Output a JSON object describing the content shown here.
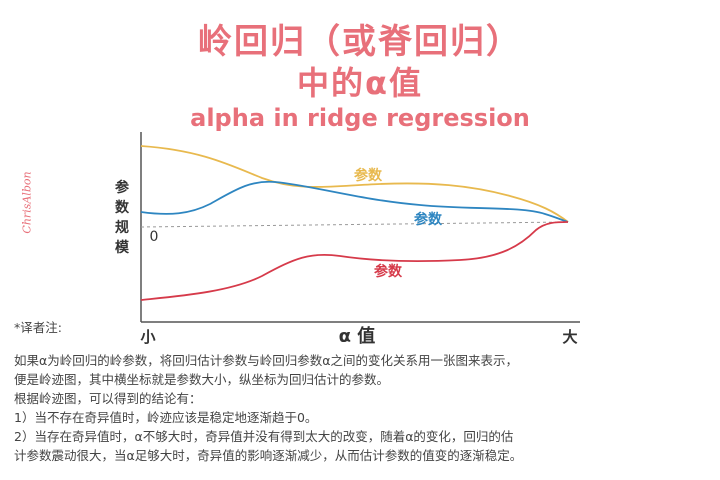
{
  "title": {
    "line1": "岭回归（或脊回归）",
    "line2": "中的α值",
    "line3": "alpha in ridge regression"
  },
  "signature": "ChrisAlbon",
  "diagram": {
    "y_axis_label_chars": [
      "参",
      "数",
      "规",
      "模"
    ],
    "zero_label": "0",
    "x_axis_left": "小",
    "x_axis_center": "α 值",
    "x_axis_right": "大",
    "curves": [
      {
        "label": "参数",
        "color": "#e8b94e"
      },
      {
        "label": "参数",
        "color": "#2e86c1"
      },
      {
        "label": "参数",
        "color": "#d63a4a"
      }
    ]
  },
  "notes": {
    "heading": "*译者注:",
    "lines": [
      "如果α为岭回归的岭参数，将回归估计参数与岭回归参数α之间的变化关系用一张图来表示，",
      "便是岭迹图，其中横坐标就是参数大小，纵坐标为回归估计的参数。",
      "根据岭迹图，可以得到的结论有：",
      "1）当不存在奇异值时，岭迹应该是稳定地逐渐趋于0。",
      "2）当存在奇异值时，α不够大时，奇异值并没有得到太大的改变，随着α的变化，回归的估",
      "计参数震动很大，当α足够大时，奇异值的影响逐渐减少，从而估计参数的值变的逐渐稳定。"
    ]
  }
}
